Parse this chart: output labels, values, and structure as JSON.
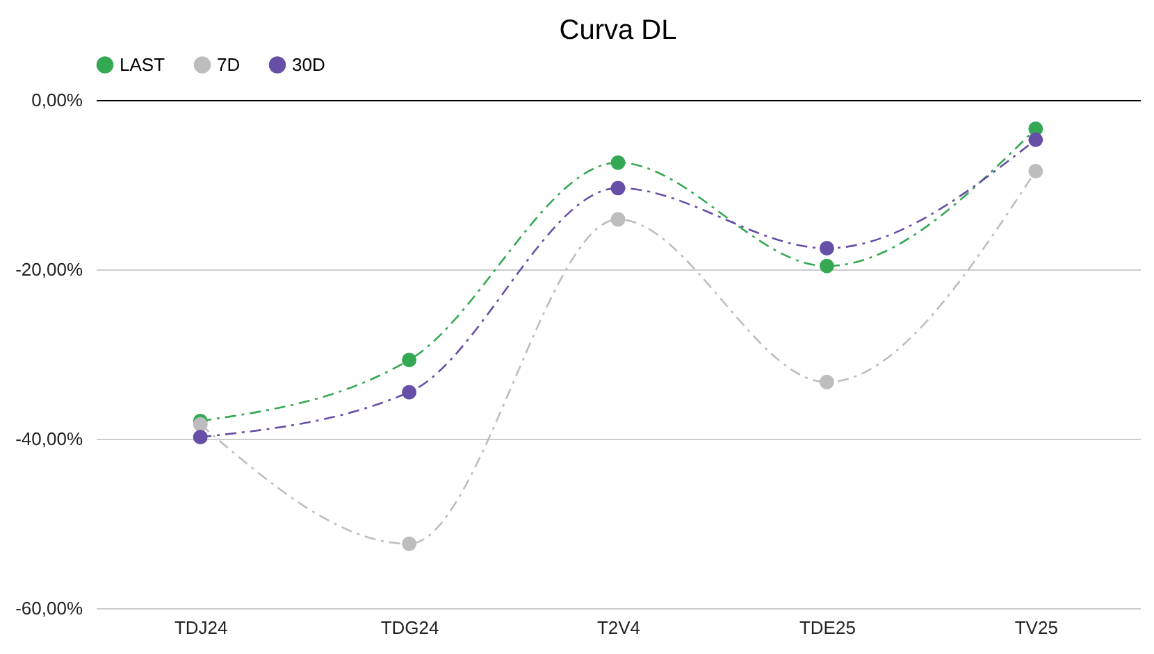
{
  "chart_data": {
    "type": "line",
    "title": "Curva DL",
    "categories": [
      "TDJ24",
      "TDG24",
      "T2V4",
      "TDE25",
      "TV25"
    ],
    "series": [
      {
        "name": "LAST",
        "color": "#34a853",
        "values": [
          -37.9,
          -30.7,
          -7.4,
          -19.6,
          -3.4
        ]
      },
      {
        "name": "7D",
        "color": "#bdbdbd",
        "values": [
          -38.3,
          -52.4,
          -14.1,
          -33.3,
          -8.4
        ]
      },
      {
        "name": "30D",
        "color": "#674ea7",
        "values": [
          -39.8,
          -34.5,
          -10.4,
          -17.5,
          -4.7
        ]
      }
    ],
    "ylim": [
      -60,
      0
    ],
    "yticks": [
      {
        "value": -60,
        "label": "-60,00%"
      },
      {
        "value": -40,
        "label": "-40,00%"
      },
      {
        "value": -20,
        "label": "-20,00%"
      },
      {
        "value": 0,
        "label": "0,00%"
      }
    ],
    "grid": "y",
    "legend": "top",
    "marker": "circle",
    "line_style": "dashed"
  }
}
